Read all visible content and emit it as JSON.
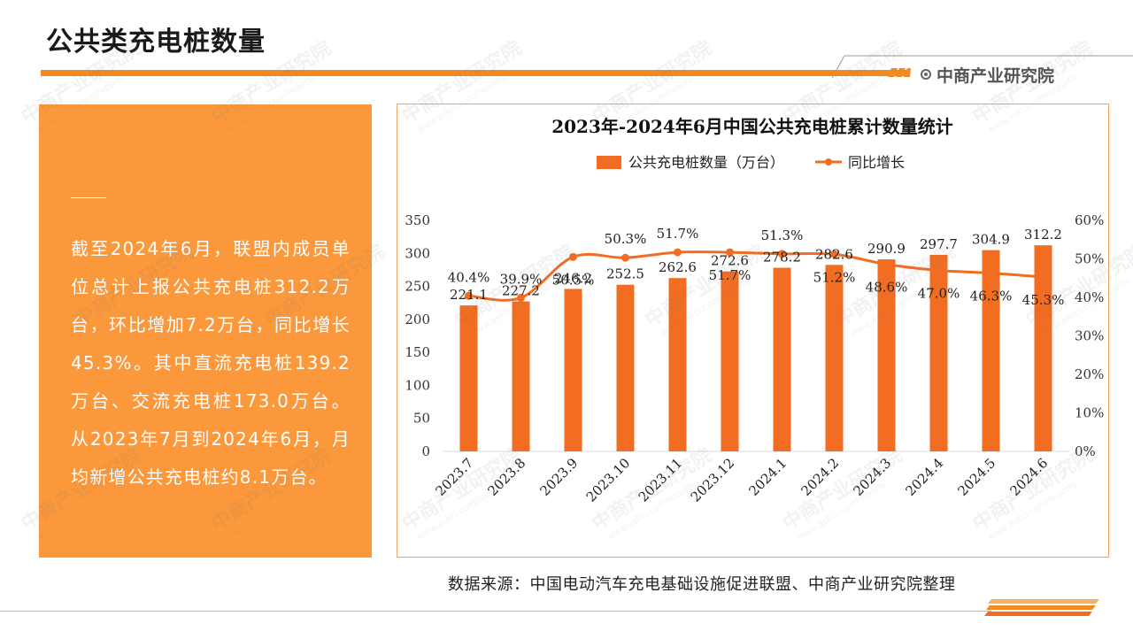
{
  "page": {
    "title": "公共类充电桩数量",
    "logo_text": "中商产业研究院",
    "source_text": "数据来源：中国电动汽车充电基础设施促进联盟、中商产业研究院整理",
    "watermark_text": "中商产业研究院",
    "watermark_url": "www.askci.com/reports",
    "summary": "截至2024年6月，联盟内成员单位总计上报公共充电桩312.2万台，环比增加7.2万台，同比增长45.3%。其中直流充电桩139.2万台、交流充电桩173.0万台。从2023年7月到2024年6月，月均新增公共充电桩约8.1万台。"
  },
  "colors": {
    "accent": "#f28a21",
    "bar": "#f26d21",
    "line": "#f26d21",
    "panel": "#fb983b"
  },
  "chart_data": {
    "type": "bar",
    "title": "2023年-2024年6月中国公共充电桩累计数量统计",
    "categories": [
      "2023.7",
      "2023.8",
      "2023.9",
      "2023.10",
      "2023.11",
      "2023.12",
      "2024.1",
      "2024.2",
      "2024.3",
      "2024.4",
      "2024.5",
      "2024.6"
    ],
    "series": [
      {
        "name": "公共充电桩数量（万台）",
        "type": "bar",
        "axis": "left",
        "values": [
          221.1,
          227.2,
          246.2,
          252.5,
          262.6,
          272.6,
          278.2,
          282.6,
          290.9,
          297.7,
          304.9,
          312.2
        ],
        "labels": [
          "221.1",
          "227.2",
          "246.2",
          "252.5",
          "262.6",
          "272.6",
          "278.2",
          "282.6",
          "290.9",
          "297.7",
          "304.9",
          "312.2"
        ]
      },
      {
        "name": "同比增长",
        "type": "line",
        "axis": "right",
        "values": [
          40.4,
          39.9,
          50.5,
          50.3,
          51.7,
          51.7,
          51.3,
          51.2,
          48.6,
          47.0,
          46.3,
          45.3
        ],
        "labels": [
          "40.4%",
          "39.9%",
          "50.5%",
          "50.3%",
          "51.7%",
          "51.7%",
          "51.3%",
          "51.2%",
          "48.6%",
          "47.0%",
          "46.3%",
          "45.3%"
        ]
      }
    ],
    "y_left": {
      "min": 0,
      "max": 350,
      "ticks": [
        "0",
        "50",
        "100",
        "150",
        "200",
        "250",
        "300",
        "350"
      ]
    },
    "y_right": {
      "min": 0,
      "max": 60,
      "ticks": [
        "0%",
        "10%",
        "20%",
        "30%",
        "40%",
        "50%",
        "60%"
      ]
    },
    "legend_position": "top-center",
    "grid": false
  }
}
